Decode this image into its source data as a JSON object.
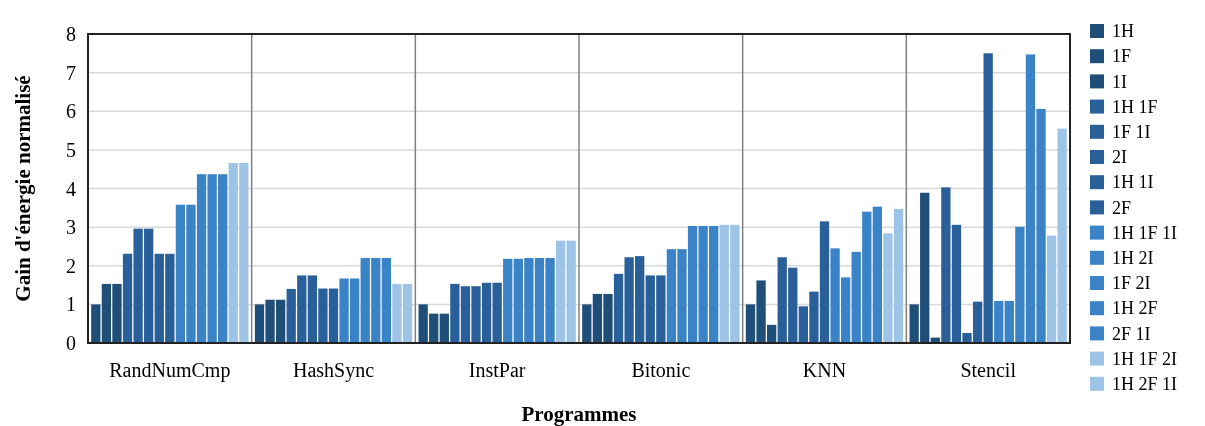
{
  "chart_data": {
    "type": "bar",
    "xlabel": "Programmes",
    "ylabel": "Gain d'énergie normalisé",
    "categories": [
      "RandNumCmp",
      "HashSync",
      "InstPar",
      "Bitonic",
      "KNN",
      "Stencil"
    ],
    "ylim": [
      0,
      8
    ],
    "yticks": [
      0,
      1,
      2,
      3,
      4,
      5,
      6,
      7,
      8
    ],
    "grid": true,
    "legend": "right",
    "series": [
      {
        "name": "1H",
        "color": "#1f4e79",
        "values": [
          1.0,
          1.0,
          1.0,
          1.0,
          1.0,
          1.0
        ]
      },
      {
        "name": "1F",
        "color": "#1f4e79",
        "values": [
          1.53,
          1.12,
          0.76,
          1.27,
          1.62,
          3.89
        ]
      },
      {
        "name": "1I",
        "color": "#1f4e79",
        "values": [
          1.53,
          1.12,
          0.76,
          1.27,
          0.47,
          0.14
        ]
      },
      {
        "name": "1H 1F",
        "color": "#2a6099",
        "values": [
          2.31,
          1.4,
          1.53,
          1.79,
          2.22,
          4.03
        ]
      },
      {
        "name": "1F 1I",
        "color": "#2a6099",
        "values": [
          2.96,
          1.75,
          1.47,
          2.22,
          1.95,
          3.06
        ]
      },
      {
        "name": "2I",
        "color": "#2a6099",
        "values": [
          2.96,
          1.75,
          1.47,
          2.25,
          0.95,
          0.26
        ]
      },
      {
        "name": "1H 1I",
        "color": "#2a6099",
        "values": [
          2.31,
          1.41,
          1.56,
          1.75,
          1.33,
          1.07
        ]
      },
      {
        "name": "2F",
        "color": "#2a6099",
        "values": [
          2.31,
          1.41,
          1.56,
          1.75,
          3.15,
          7.5
        ]
      },
      {
        "name": "1H 1F 1I",
        "color": "#3a83c6",
        "values": [
          3.58,
          1.67,
          2.18,
          2.43,
          2.45,
          1.09
        ]
      },
      {
        "name": "1H 2I",
        "color": "#3a83c6",
        "values": [
          3.58,
          1.67,
          2.18,
          2.43,
          1.7,
          1.09
        ]
      },
      {
        "name": "1F 2I",
        "color": "#3a83c6",
        "values": [
          4.37,
          2.2,
          2.2,
          3.03,
          2.36,
          3.01
        ]
      },
      {
        "name": "1H 2F",
        "color": "#3a83c6",
        "values": [
          4.37,
          2.2,
          2.2,
          3.03,
          3.4,
          7.47
        ]
      },
      {
        "name": "2F 1I",
        "color": "#3a83c6",
        "values": [
          4.37,
          2.2,
          2.2,
          3.03,
          3.53,
          6.06
        ]
      },
      {
        "name": "1H 1F 2I",
        "color": "#9dc3e6",
        "values": [
          4.66,
          1.53,
          2.65,
          3.06,
          2.84,
          2.78
        ]
      },
      {
        "name": "1H 2F 1I",
        "color": "#9dc3e6",
        "values": [
          4.66,
          1.53,
          2.65,
          3.06,
          3.47,
          5.55
        ]
      }
    ]
  }
}
